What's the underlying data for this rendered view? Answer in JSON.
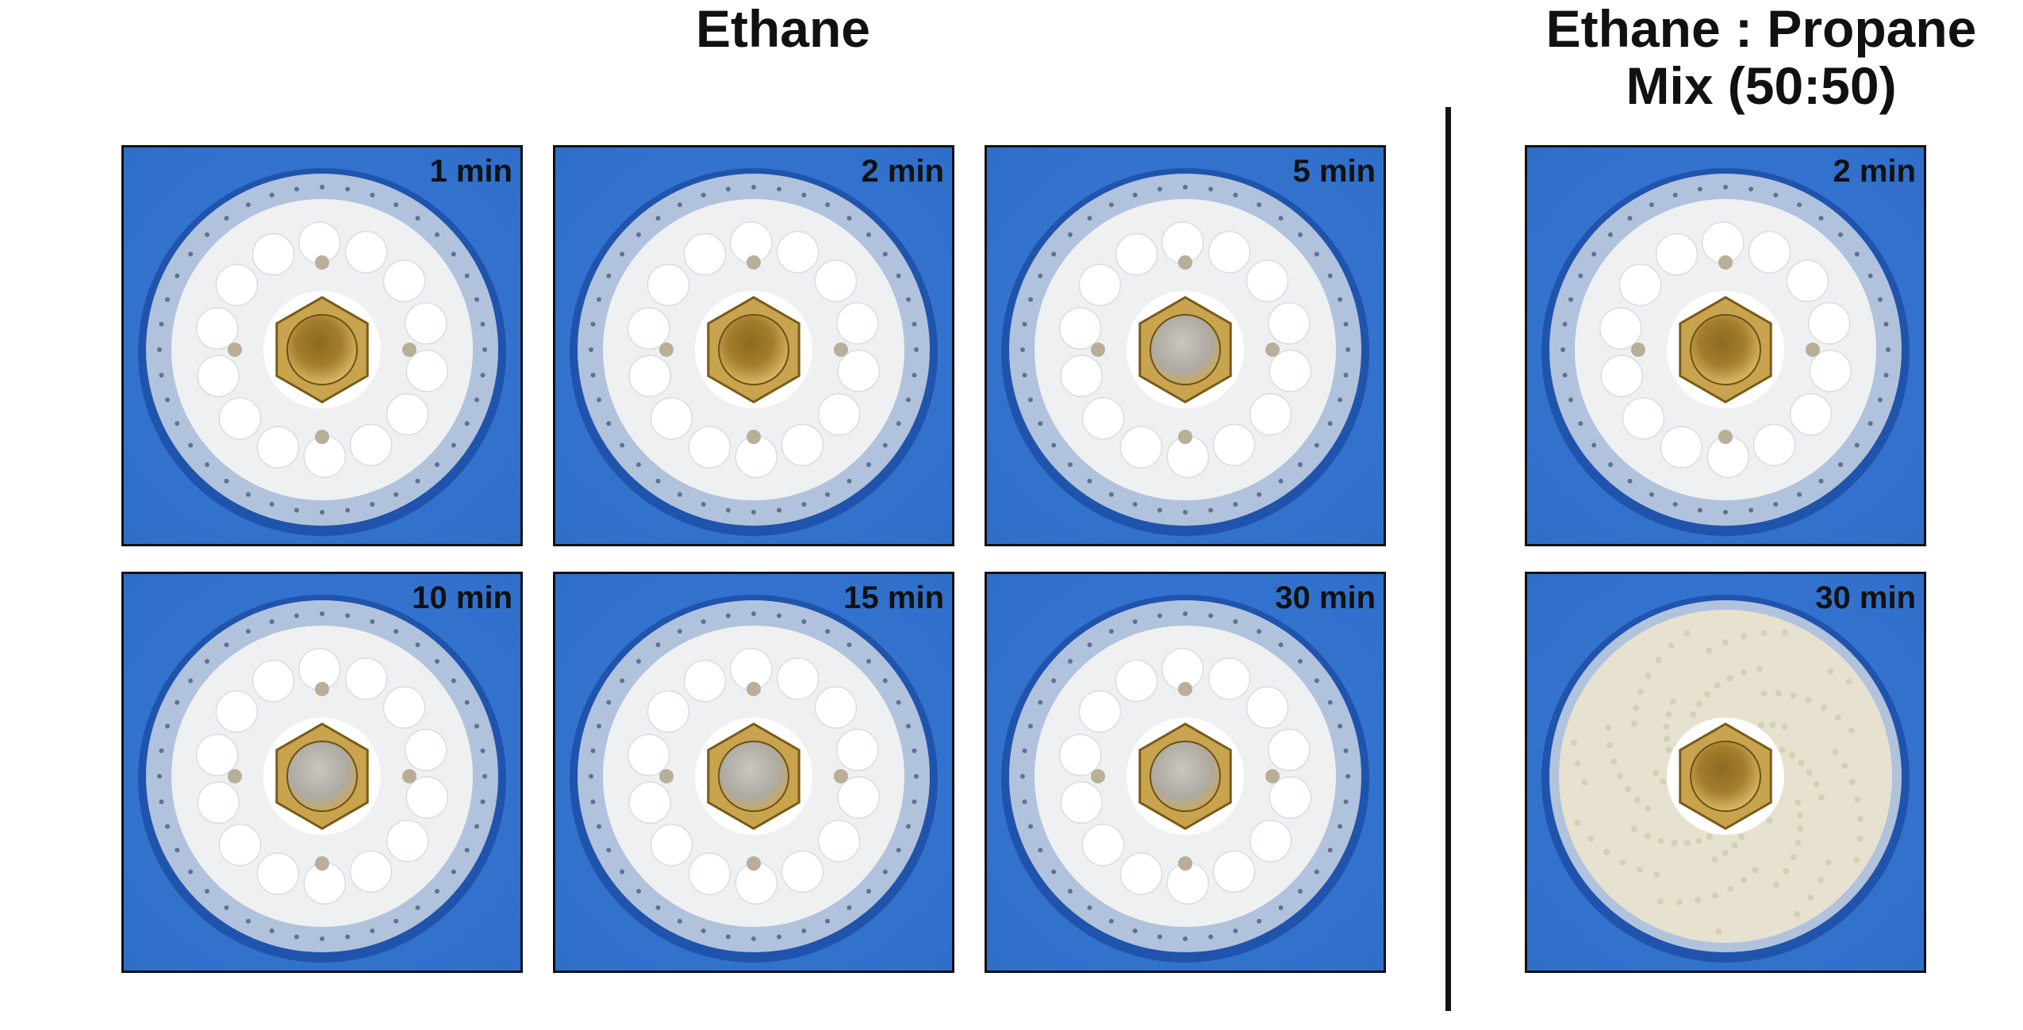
{
  "groups": [
    {
      "title": "Ethane",
      "panels": [
        {
          "time": "1 min",
          "nut": "brass",
          "layer": "white"
        },
        {
          "time": "2 min",
          "nut": "brass",
          "layer": "white"
        },
        {
          "time": "5 min",
          "nut": "silver",
          "layer": "white"
        },
        {
          "time": "10 min",
          "nut": "silver",
          "layer": "white"
        },
        {
          "time": "15 min",
          "nut": "silver",
          "layer": "white"
        },
        {
          "time": "30 min",
          "nut": "silver",
          "layer": "white"
        }
      ]
    },
    {
      "title_lines": [
        "Ethane : Propane",
        "Mix (50:50)"
      ],
      "panels": [
        {
          "time": "2 min",
          "nut": "brass",
          "layer": "white"
        },
        {
          "time": "30 min",
          "nut": "brass",
          "layer": "granular"
        }
      ]
    }
  ],
  "colors": {
    "background_blue": "#2f6ec9",
    "ring_dark_blue": "#1d4fa6",
    "frost_white": "#eef0f2",
    "brass": "#b28a33"
  }
}
